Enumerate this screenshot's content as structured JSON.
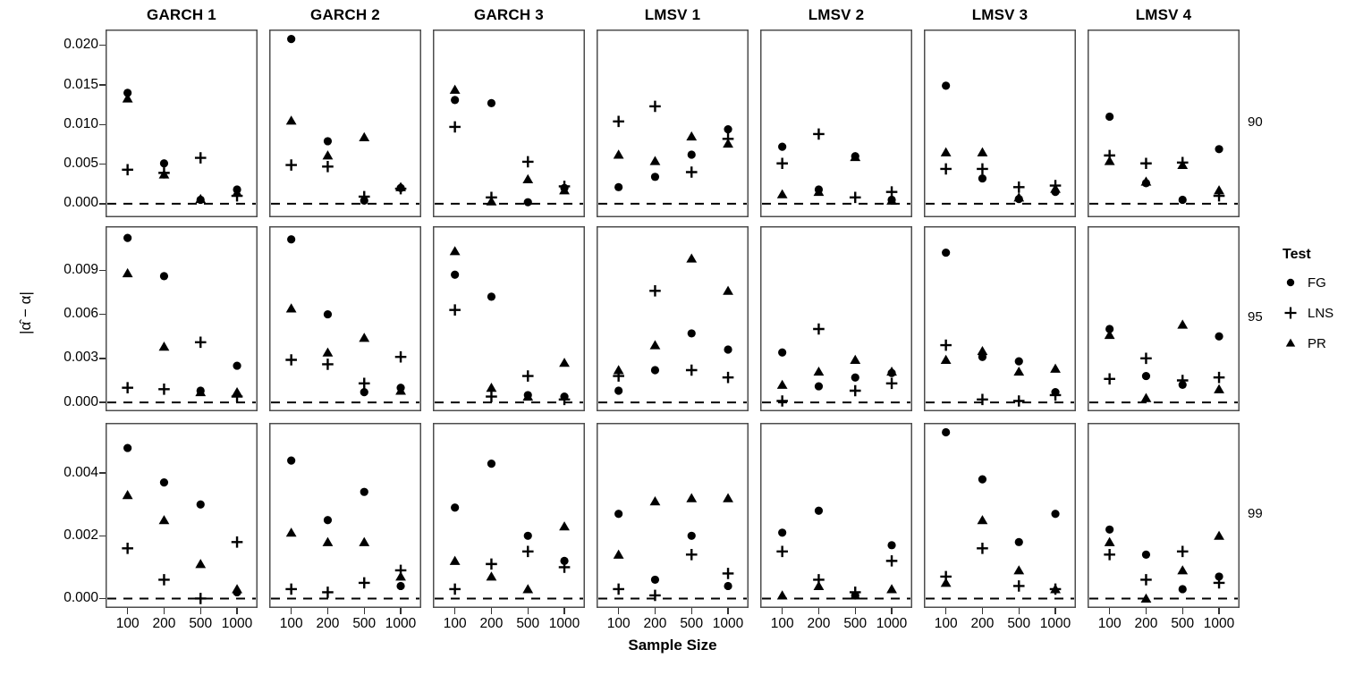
{
  "colors": {
    "foreground": "#000000",
    "panel_border": "#4d4d4d",
    "background": "#ffffff",
    "zero_line": "#000000"
  },
  "chart_data": {
    "type": "scatter",
    "title": "",
    "xlabel": "Sample Size",
    "ylabel": "|α̂ − α|",
    "x_categories": [
      "100",
      "200",
      "500",
      "1000"
    ],
    "facet_cols": [
      "GARCH 1",
      "GARCH 2",
      "GARCH 3",
      "LMSV 1",
      "LMSV 2",
      "LMSV 3",
      "LMSV 4"
    ],
    "facet_rows": [
      "90",
      "95",
      "99"
    ],
    "grid": "off",
    "zero_reference_line": "dashed",
    "legend": {
      "title": "Test",
      "position": "right",
      "entries": [
        {
          "label": "FG",
          "marker": "circle"
        },
        {
          "label": "LNS",
          "marker": "plus"
        },
        {
          "label": "PR",
          "marker": "triangle"
        }
      ]
    },
    "rows": [
      {
        "label": "90",
        "yticks": [
          0.0,
          0.005,
          0.01,
          0.015,
          0.02
        ],
        "ylim": [
          -0.0017,
          0.022
        ],
        "panels": [
          {
            "col": "GARCH 1",
            "FG": [
              0.014,
              0.0051,
              0.0005,
              0.0018
            ],
            "LNS": [
              0.0043,
              0.0039,
              0.0058,
              0.001
            ],
            "PR": [
              0.0133,
              0.0037,
              0.0006,
              0.0014
            ]
          },
          {
            "col": "GARCH 2",
            "FG": [
              0.0208,
              0.0079,
              0.0004,
              0.002
            ],
            "LNS": [
              0.0049,
              0.0047,
              0.0009,
              0.0019
            ],
            "PR": [
              0.0105,
              0.0061,
              0.0084,
              0.0021
            ]
          },
          {
            "col": "GARCH 3",
            "FG": [
              0.0131,
              0.0127,
              0.0002,
              0.002
            ],
            "LNS": [
              0.0097,
              0.0008,
              0.0053,
              0.0022
            ],
            "PR": [
              0.0144,
              0.0003,
              0.0031,
              0.0017
            ]
          },
          {
            "col": "LMSV 1",
            "FG": [
              0.0021,
              0.0034,
              0.0062,
              0.0094
            ],
            "LNS": [
              0.0104,
              0.0123,
              0.004,
              0.0082
            ],
            "PR": [
              0.0062,
              0.0054,
              0.0085,
              0.0076
            ]
          },
          {
            "col": "LMSV 2",
            "FG": [
              0.0072,
              0.0018,
              0.006,
              0.0005
            ],
            "LNS": [
              0.0051,
              0.0088,
              0.0008,
              0.0015
            ],
            "PR": [
              0.0012,
              0.0015,
              0.0059,
              0.0004
            ]
          },
          {
            "col": "LMSV 3",
            "FG": [
              0.0149,
              0.0032,
              0.0006,
              0.0015
            ],
            "LNS": [
              0.0044,
              0.0044,
              0.0021,
              0.0023
            ],
            "PR": [
              0.0065,
              0.0065,
              0.0008,
              0.0019
            ]
          },
          {
            "col": "LMSV 4",
            "FG": [
              0.011,
              0.0026,
              0.0005,
              0.0069
            ],
            "LNS": [
              0.0061,
              0.0051,
              0.0052,
              0.001
            ],
            "PR": [
              0.0054,
              0.0028,
              0.0049,
              0.0017
            ]
          }
        ]
      },
      {
        "label": "95",
        "yticks": [
          0.0,
          0.003,
          0.006,
          0.009
        ],
        "ylim": [
          -0.0006,
          0.012
        ],
        "panels": [
          {
            "col": "GARCH 1",
            "FG": [
              0.0112,
              0.0086,
              0.0008,
              0.0025
            ],
            "LNS": [
              0.001,
              0.0009,
              0.0041,
              0.0004
            ],
            "PR": [
              0.0088,
              0.0038,
              0.0007,
              0.0007
            ]
          },
          {
            "col": "GARCH 2",
            "FG": [
              0.0111,
              0.006,
              0.0007,
              0.001
            ],
            "LNS": [
              0.0029,
              0.0026,
              0.0013,
              0.0031
            ],
            "PR": [
              0.0064,
              0.0034,
              0.0044,
              0.0008
            ]
          },
          {
            "col": "GARCH 3",
            "FG": [
              0.0087,
              0.0072,
              0.0005,
              0.0004
            ],
            "LNS": [
              0.0063,
              0.0004,
              0.0018,
              0.0002
            ],
            "PR": [
              0.0103,
              0.001,
              0.0004,
              0.0027
            ]
          },
          {
            "col": "LMSV 1",
            "FG": [
              0.0008,
              0.0022,
              0.0047,
              0.0036
            ],
            "LNS": [
              0.0018,
              0.0076,
              0.0022,
              0.0017
            ],
            "PR": [
              0.0022,
              0.0039,
              0.0098,
              0.0076
            ]
          },
          {
            "col": "LMSV 2",
            "FG": [
              0.0034,
              0.0011,
              0.0017,
              0.002
            ],
            "LNS": [
              0.0001,
              0.005,
              0.0008,
              0.0013
            ],
            "PR": [
              0.0012,
              0.0021,
              0.0029,
              0.0021
            ]
          },
          {
            "col": "LMSV 3",
            "FG": [
              0.0102,
              0.0031,
              0.0028,
              0.0007
            ],
            "LNS": [
              0.0039,
              0.0002,
              0.0001,
              0.0005
            ],
            "PR": [
              0.0029,
              0.0035,
              0.0021,
              0.0023
            ]
          },
          {
            "col": "LMSV 4",
            "FG": [
              0.005,
              0.0018,
              0.0012,
              0.0045
            ],
            "LNS": [
              0.0016,
              0.003,
              0.0015,
              0.0017
            ],
            "PR": [
              0.0046,
              0.0003,
              0.0053,
              0.0009
            ]
          }
        ]
      },
      {
        "label": "99",
        "yticks": [
          0.0,
          0.002,
          0.004
        ],
        "ylim": [
          -0.0003,
          0.0056
        ],
        "panels": [
          {
            "col": "GARCH 1",
            "FG": [
              0.0048,
              0.0037,
              0.003,
              0.0002
            ],
            "LNS": [
              0.0016,
              0.0006,
              0.0,
              0.0018
            ],
            "PR": [
              0.0033,
              0.0025,
              0.0011,
              0.0003
            ]
          },
          {
            "col": "GARCH 2",
            "FG": [
              0.0044,
              0.0025,
              0.0034,
              0.0004
            ],
            "LNS": [
              0.0003,
              0.0002,
              0.0005,
              0.0009
            ],
            "PR": [
              0.0021,
              0.0018,
              0.0018,
              0.0007
            ]
          },
          {
            "col": "GARCH 3",
            "FG": [
              0.0029,
              0.0043,
              0.002,
              0.0012
            ],
            "LNS": [
              0.0003,
              0.0011,
              0.0015,
              0.001
            ],
            "PR": [
              0.0012,
              0.0007,
              0.0003,
              0.0023
            ]
          },
          {
            "col": "LMSV 1",
            "FG": [
              0.0027,
              0.0006,
              0.002,
              0.0004
            ],
            "LNS": [
              0.0003,
              0.0001,
              0.0014,
              0.0008
            ],
            "PR": [
              0.0014,
              0.0031,
              0.0032,
              0.0032
            ]
          },
          {
            "col": "LMSV 2",
            "FG": [
              0.0021,
              0.0028,
              0.0001,
              0.0017
            ],
            "LNS": [
              0.0015,
              0.0006,
              0.0002,
              0.0012
            ],
            "PR": [
              0.0001,
              0.0004,
              0.0001,
              0.0003
            ]
          },
          {
            "col": "LMSV 3",
            "FG": [
              0.0053,
              0.0038,
              0.0018,
              0.0027
            ],
            "LNS": [
              0.0007,
              0.0016,
              0.0004,
              0.0003
            ],
            "PR": [
              0.0005,
              0.0025,
              0.0009,
              0.0003
            ]
          },
          {
            "col": "LMSV 4",
            "FG": [
              0.0022,
              0.0014,
              0.0003,
              0.0007
            ],
            "LNS": [
              0.0014,
              0.0006,
              0.0015,
              0.0005
            ],
            "PR": [
              0.0018,
              0.0,
              0.0009,
              0.002
            ]
          }
        ]
      }
    ]
  }
}
